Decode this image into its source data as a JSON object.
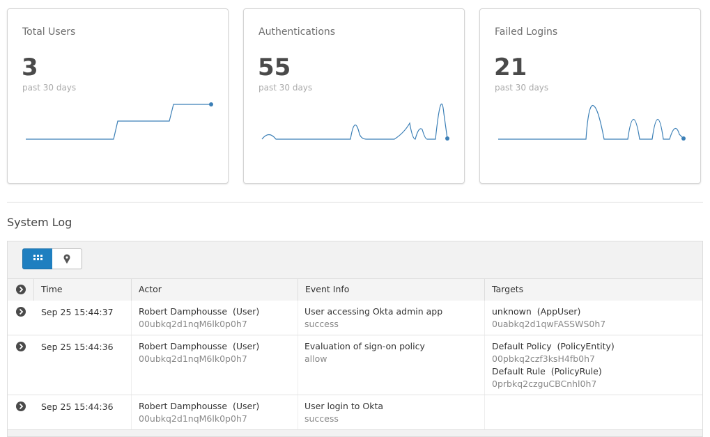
{
  "cards": [
    {
      "title": "Total Users",
      "value": 3,
      "period": "past 30 days"
    },
    {
      "title": "Authentications",
      "value": 55,
      "period": "past 30 days"
    },
    {
      "title": "Failed Logins",
      "value": 21,
      "period": "past 30 days"
    }
  ],
  "system_log": {
    "title": "System Log",
    "columns": [
      "Time",
      "Actor",
      "Event Info",
      "Targets"
    ],
    "rows": [
      {
        "time": "Sep 25 15:44:37",
        "actor": {
          "name": "Robert Damphousse  (User)",
          "id": "00ubkq2d1nqM6lk0p0h7"
        },
        "event": {
          "info": "User accessing Okta admin app",
          "result": "success"
        },
        "targets": [
          {
            "name": "unknown  (AppUser)",
            "id": "0uabkq2d1qwFASSWS0h7"
          }
        ]
      },
      {
        "time": "Sep 25 15:44:36",
        "actor": {
          "name": "Robert Damphousse  (User)",
          "id": "00ubkq2d1nqM6lk0p0h7"
        },
        "event": {
          "info": "Evaluation of sign-on policy",
          "result": "allow"
        },
        "targets": [
          {
            "name": "Default Policy  (PolicyEntity)",
            "id": "00pbkq2czf3ksH4fb0h7"
          },
          {
            "name": "Default Rule  (PolicyRule)",
            "id": "0prbkq2czguCBCnhl0h7"
          }
        ]
      },
      {
        "time": "Sep 25 15:44:36",
        "actor": {
          "name": "Robert Damphousse  (User)",
          "id": "00ubkq2d1nqM6lk0p0h7"
        },
        "event": {
          "info": "User login to Okta",
          "result": "success"
        },
        "targets": []
      }
    ]
  }
}
